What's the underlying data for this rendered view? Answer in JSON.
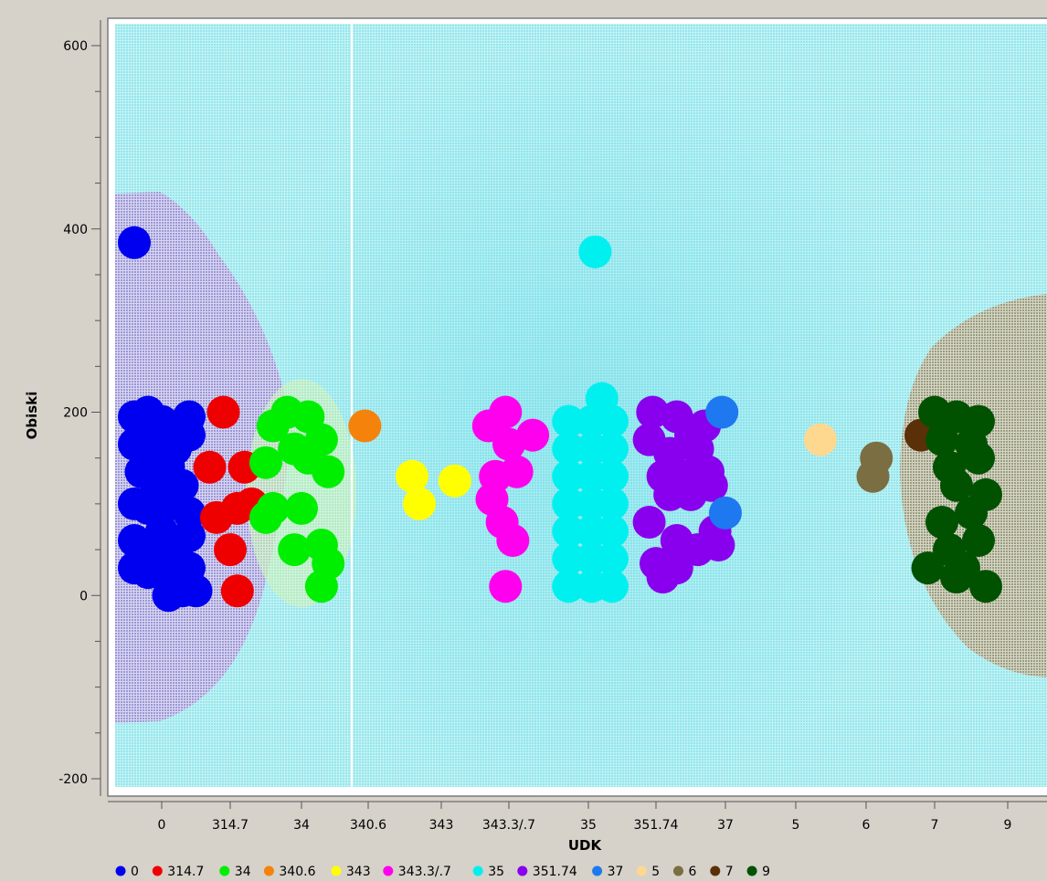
{
  "chart_data": {
    "type": "scatter",
    "xlabel": "UDK",
    "ylabel": "Obiski",
    "ylim": [
      -200,
      600
    ],
    "y_ticks": [
      -200,
      0,
      200,
      400,
      600
    ],
    "categories": [
      "0",
      "314.7",
      "34",
      "340.6",
      "343",
      "343.3/.7",
      "35",
      "351.74",
      "37",
      "5",
      "6",
      "7",
      "9"
    ],
    "legend_position": "bottom",
    "background": "prediction regions shaded by class",
    "series": [
      {
        "name": "0",
        "color": "#0000f0",
        "points": [
          [
            -0.4,
            385
          ],
          [
            -0.4,
            195
          ],
          [
            -0.2,
            200
          ],
          [
            0.0,
            190
          ],
          [
            0.2,
            180
          ],
          [
            0.4,
            195
          ],
          [
            -0.4,
            165
          ],
          [
            -0.2,
            170
          ],
          [
            0.0,
            150
          ],
          [
            0.2,
            160
          ],
          [
            0.4,
            175
          ],
          [
            -0.3,
            135
          ],
          [
            -0.1,
            125
          ],
          [
            0.1,
            140
          ],
          [
            0.3,
            120
          ],
          [
            -0.4,
            100
          ],
          [
            -0.2,
            95
          ],
          [
            0.0,
            110
          ],
          [
            0.2,
            100
          ],
          [
            0.4,
            90
          ],
          [
            -0.4,
            60
          ],
          [
            -0.2,
            55
          ],
          [
            0.0,
            70
          ],
          [
            0.2,
            50
          ],
          [
            0.4,
            65
          ],
          [
            -0.4,
            30
          ],
          [
            -0.2,
            25
          ],
          [
            0.0,
            40
          ],
          [
            0.2,
            20
          ],
          [
            0.4,
            30
          ],
          [
            0.1,
            0
          ],
          [
            0.3,
            5
          ],
          [
            0.5,
            5
          ]
        ]
      },
      {
        "name": "314.7",
        "color": "#ee0000",
        "points": [
          [
            0.9,
            200
          ],
          [
            0.7,
            140
          ],
          [
            1.2,
            140
          ],
          [
            1.3,
            100
          ],
          [
            1.1,
            95
          ],
          [
            0.8,
            85
          ],
          [
            1.0,
            50
          ],
          [
            1.1,
            5
          ]
        ]
      },
      {
        "name": "34",
        "color": "#00ee00",
        "points": [
          [
            1.6,
            185
          ],
          [
            1.8,
            200
          ],
          [
            2.1,
            195
          ],
          [
            2.3,
            170
          ],
          [
            1.9,
            160
          ],
          [
            2.1,
            150
          ],
          [
            1.5,
            145
          ],
          [
            2.4,
            135
          ],
          [
            1.6,
            95
          ],
          [
            1.5,
            85
          ],
          [
            2.0,
            95
          ],
          [
            1.9,
            50
          ],
          [
            2.3,
            55
          ],
          [
            2.4,
            35
          ],
          [
            2.3,
            10
          ]
        ]
      },
      {
        "name": "340.6",
        "color": "#f5820a",
        "points": [
          [
            2.95,
            185
          ]
        ]
      },
      {
        "name": "343",
        "color": "#ffff00",
        "points": [
          [
            3.6,
            130
          ],
          [
            3.7,
            100
          ],
          [
            4.2,
            125
          ]
        ]
      },
      {
        "name": "343.3/.7",
        "color": "#ff00ee",
        "points": [
          [
            4.95,
            200
          ],
          [
            4.7,
            185
          ],
          [
            5.0,
            165
          ],
          [
            5.3,
            175
          ],
          [
            4.8,
            130
          ],
          [
            5.1,
            135
          ],
          [
            4.75,
            105
          ],
          [
            4.9,
            80
          ],
          [
            5.05,
            60
          ],
          [
            4.95,
            10
          ]
        ]
      },
      {
        "name": "35",
        "color": "#00f0f0",
        "points": [
          [
            6.1,
            375
          ],
          [
            6.2,
            215
          ],
          [
            5.75,
            190
          ],
          [
            6.05,
            190
          ],
          [
            6.35,
            190
          ],
          [
            5.75,
            160
          ],
          [
            6.05,
            160
          ],
          [
            6.35,
            160
          ],
          [
            5.75,
            130
          ],
          [
            6.05,
            130
          ],
          [
            6.35,
            130
          ],
          [
            5.75,
            100
          ],
          [
            6.05,
            100
          ],
          [
            6.35,
            100
          ],
          [
            5.75,
            70
          ],
          [
            6.05,
            70
          ],
          [
            6.35,
            70
          ],
          [
            5.75,
            40
          ],
          [
            6.05,
            40
          ],
          [
            6.35,
            40
          ],
          [
            5.75,
            10
          ],
          [
            6.05,
            10
          ],
          [
            6.35,
            10
          ]
        ]
      },
      {
        "name": "351.74",
        "color": "#8800ee",
        "points": [
          [
            6.95,
            200
          ],
          [
            7.3,
            195
          ],
          [
            7.7,
            185
          ],
          [
            6.9,
            170
          ],
          [
            7.5,
            175
          ],
          [
            7.2,
            155
          ],
          [
            7.6,
            160
          ],
          [
            7.1,
            130
          ],
          [
            7.4,
            130
          ],
          [
            7.75,
            135
          ],
          [
            7.2,
            110
          ],
          [
            7.5,
            110
          ],
          [
            7.8,
            120
          ],
          [
            6.9,
            80
          ],
          [
            7.3,
            60
          ],
          [
            7.6,
            50
          ],
          [
            7.85,
            70
          ],
          [
            7.0,
            35
          ],
          [
            7.3,
            30
          ],
          [
            7.1,
            20
          ],
          [
            7.9,
            55
          ]
        ]
      },
      {
        "name": "37",
        "color": "#1e78f0",
        "points": [
          [
            7.95,
            200
          ],
          [
            8.0,
            90
          ]
        ]
      },
      {
        "name": "5",
        "color": "#ffd890",
        "points": [
          [
            9.35,
            170
          ]
        ]
      },
      {
        "name": "6",
        "color": "#7a6e42",
        "points": [
          [
            10.15,
            150
          ],
          [
            10.1,
            130
          ]
        ]
      },
      {
        "name": "7",
        "color": "#5a3008",
        "points": [
          [
            10.8,
            175
          ]
        ]
      },
      {
        "name": "9",
        "color": "#005200",
        "points": [
          [
            11.0,
            200
          ],
          [
            11.3,
            195
          ],
          [
            11.6,
            190
          ],
          [
            11.1,
            170
          ],
          [
            11.5,
            165
          ],
          [
            11.2,
            140
          ],
          [
            11.6,
            150
          ],
          [
            11.3,
            120
          ],
          [
            11.7,
            110
          ],
          [
            11.1,
            80
          ],
          [
            11.5,
            90
          ],
          [
            11.2,
            50
          ],
          [
            11.6,
            60
          ],
          [
            10.9,
            30
          ],
          [
            11.4,
            30
          ],
          [
            11.3,
            20
          ],
          [
            11.7,
            10
          ]
        ]
      }
    ]
  }
}
